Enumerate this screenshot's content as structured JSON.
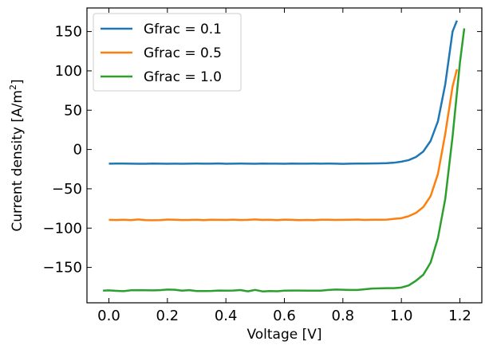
{
  "chart_data": {
    "type": "line",
    "xlabel": "Voltage [V]",
    "ylabel_main": "Current density [A/m",
    "ylabel_sup": "2",
    "ylabel_end": "]",
    "xlim": [
      -0.075,
      1.275
    ],
    "ylim": [
      -195,
      180
    ],
    "xticks": [
      0.0,
      0.2,
      0.4,
      0.6,
      0.8,
      1.0,
      1.2
    ],
    "xtick_labels": [
      "0.0",
      "0.2",
      "0.4",
      "0.6",
      "0.8",
      "1.0",
      "1.2"
    ],
    "yticks": [
      -150,
      -100,
      -50,
      0,
      50,
      100,
      150
    ],
    "ytick_labels": [
      "−150",
      "−100",
      "−50",
      "0",
      "50",
      "100",
      "150"
    ],
    "grid": false,
    "legend_position": "top-left",
    "series": [
      {
        "name": "Gfrac = 0.1",
        "color": "#1f77b4",
        "x": [
          0.0,
          0.025,
          0.05,
          0.075,
          0.1,
          0.125,
          0.15,
          0.175,
          0.2,
          0.225,
          0.25,
          0.275,
          0.3,
          0.325,
          0.35,
          0.375,
          0.4,
          0.425,
          0.45,
          0.475,
          0.5,
          0.525,
          0.55,
          0.575,
          0.6,
          0.625,
          0.65,
          0.675,
          0.7,
          0.725,
          0.75,
          0.775,
          0.8,
          0.825,
          0.85,
          0.875,
          0.9,
          0.925,
          0.95,
          0.975,
          1.0,
          1.025,
          1.05,
          1.075,
          1.1,
          1.125,
          1.15,
          1.175,
          1.19
        ],
        "y": [
          -18,
          -17.9,
          -17.9,
          -18,
          -18.2,
          -18.1,
          -17.9,
          -18,
          -18.1,
          -18,
          -18.1,
          -18,
          -17.9,
          -18,
          -18,
          -17.8,
          -18.1,
          -18,
          -17.9,
          -18,
          -18.1,
          -17.9,
          -18,
          -18,
          -18.1,
          -17.9,
          -18,
          -18,
          -17.9,
          -18,
          -17.9,
          -18,
          -18.3,
          -18,
          -17.9,
          -17.9,
          -17.8,
          -17.6,
          -17.4,
          -16.8,
          -15.5,
          -13.5,
          -9.5,
          -2.5,
          11,
          36,
          83,
          150,
          164
        ]
      },
      {
        "name": "Gfrac = 0.5",
        "color": "#ff7f0e",
        "x": [
          0.0,
          0.025,
          0.05,
          0.075,
          0.1,
          0.125,
          0.15,
          0.175,
          0.2,
          0.225,
          0.25,
          0.275,
          0.3,
          0.325,
          0.35,
          0.375,
          0.4,
          0.425,
          0.45,
          0.475,
          0.5,
          0.525,
          0.55,
          0.575,
          0.6,
          0.625,
          0.65,
          0.675,
          0.7,
          0.725,
          0.75,
          0.775,
          0.8,
          0.825,
          0.85,
          0.875,
          0.9,
          0.925,
          0.95,
          0.975,
          1.0,
          1.025,
          1.05,
          1.075,
          1.1,
          1.125,
          1.15,
          1.175,
          1.19
        ],
        "y": [
          -89.5,
          -89.7,
          -89.4,
          -89.8,
          -89,
          -89.9,
          -90,
          -89.8,
          -89.1,
          -89.3,
          -89.7,
          -89.6,
          -89.3,
          -89.9,
          -89.3,
          -89.5,
          -89.6,
          -89.2,
          -89.7,
          -89.5,
          -89,
          -89.6,
          -89.4,
          -89.8,
          -89.2,
          -89.5,
          -89.9,
          -89.6,
          -89.8,
          -89.4,
          -89.3,
          -89.6,
          -89.5,
          -89.4,
          -89.1,
          -89.6,
          -89.4,
          -89.3,
          -89.2,
          -88.2,
          -87.4,
          -84.8,
          -80.6,
          -73.2,
          -59.3,
          -31,
          20,
          80,
          102
        ]
      },
      {
        "name": "Gfrac = 1.0",
        "color": "#2ca02c",
        "x": [
          -0.02,
          0.0,
          0.025,
          0.05,
          0.075,
          0.1,
          0.125,
          0.15,
          0.175,
          0.2,
          0.225,
          0.25,
          0.275,
          0.3,
          0.325,
          0.35,
          0.375,
          0.4,
          0.425,
          0.45,
          0.475,
          0.5,
          0.525,
          0.55,
          0.575,
          0.6,
          0.625,
          0.65,
          0.675,
          0.7,
          0.725,
          0.75,
          0.775,
          0.8,
          0.825,
          0.85,
          0.875,
          0.9,
          0.925,
          0.95,
          0.975,
          1.0,
          1.025,
          1.05,
          1.075,
          1.1,
          1.125,
          1.15,
          1.175,
          1.2,
          1.215
        ],
        "y": [
          -179.6,
          -179.2,
          -179.8,
          -180.2,
          -179.1,
          -178.9,
          -179.0,
          -179.2,
          -178.9,
          -178.1,
          -178.4,
          -179.5,
          -178.9,
          -180.0,
          -180.1,
          -179.9,
          -179.4,
          -179.6,
          -179.4,
          -178.8,
          -180.4,
          -178.6,
          -180.5,
          -180.0,
          -180.3,
          -179.5,
          -179.4,
          -179.4,
          -179.5,
          -179.6,
          -179.5,
          -178.7,
          -178.1,
          -178.4,
          -178.6,
          -178.7,
          -177.8,
          -176.9,
          -176.6,
          -176.4,
          -176.4,
          -175.6,
          -172.9,
          -166.9,
          -159.3,
          -143.8,
          -112.5,
          -62.8,
          16.4,
          110,
          154
        ]
      }
    ]
  }
}
